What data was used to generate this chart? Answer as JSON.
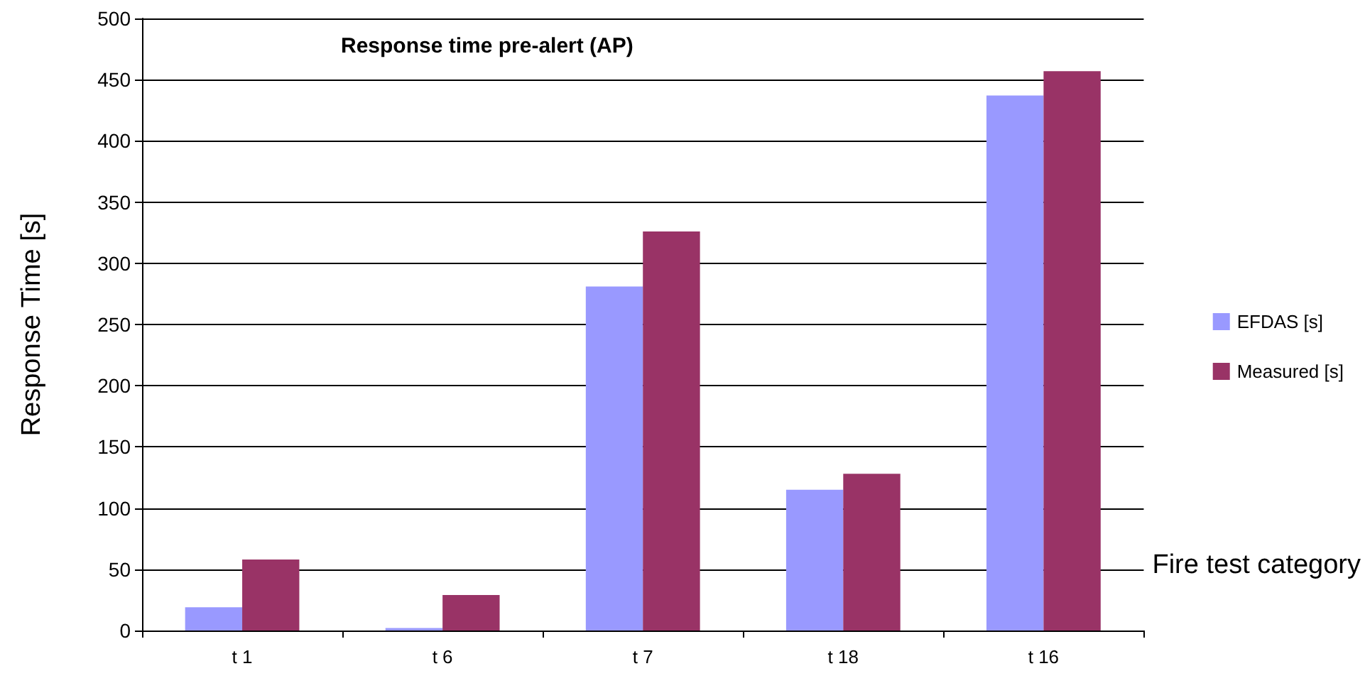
{
  "chart_data": {
    "type": "bar",
    "title": "Response time pre-alert (AP)",
    "xlabel": "Fire test category",
    "ylabel": "Response Time [s]",
    "categories": [
      "t 1",
      "t 6",
      "t 7",
      "t 18",
      "t 16"
    ],
    "series": [
      {
        "name": "EFDAS [s]",
        "color": "#9999ff",
        "values": [
          19,
          2,
          281,
          115,
          437
        ]
      },
      {
        "name": "Measured [s]",
        "color": "#993366",
        "values": [
          58,
          29,
          326,
          128,
          457
        ]
      }
    ],
    "ylim": [
      0,
      500
    ],
    "yticks": [
      0,
      50,
      100,
      150,
      200,
      250,
      300,
      350,
      400,
      450,
      500
    ],
    "grid": "y",
    "legend": "right"
  }
}
